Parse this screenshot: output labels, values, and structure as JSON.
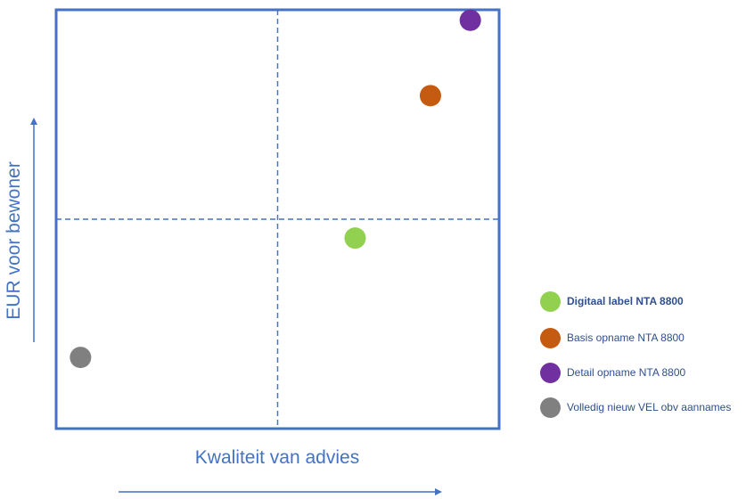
{
  "chart_data": {
    "type": "scatter",
    "title": "",
    "xlabel": "Kwaliteit van advies",
    "ylabel": "EUR voor bewoner",
    "xlim": [
      0,
      100
    ],
    "ylim": [
      0,
      100
    ],
    "divider_x": 50,
    "divider_y": 50,
    "grid": false,
    "legend_position": "right",
    "series": [
      {
        "name": "Digitaal label NTA 8800",
        "x": 67.5,
        "y": 45.5,
        "color": "#92d050",
        "bold": true
      },
      {
        "name": "Basis opname NTA 8800",
        "x": 84.5,
        "y": 79.5,
        "color": "#c55a11",
        "bold": false
      },
      {
        "name": "Detail opname NTA 8800",
        "x": 93.5,
        "y": 97.5,
        "color": "#7030a0",
        "bold": false
      },
      {
        "name": "Volledig nieuw VEL obv aannames",
        "x": 5.5,
        "y": 17,
        "color": "#808080",
        "bold": false
      }
    ],
    "colors": {
      "frame": "#4472c4",
      "axis_text": "#4472c4",
      "legend_text": "#2f4f8f"
    }
  }
}
